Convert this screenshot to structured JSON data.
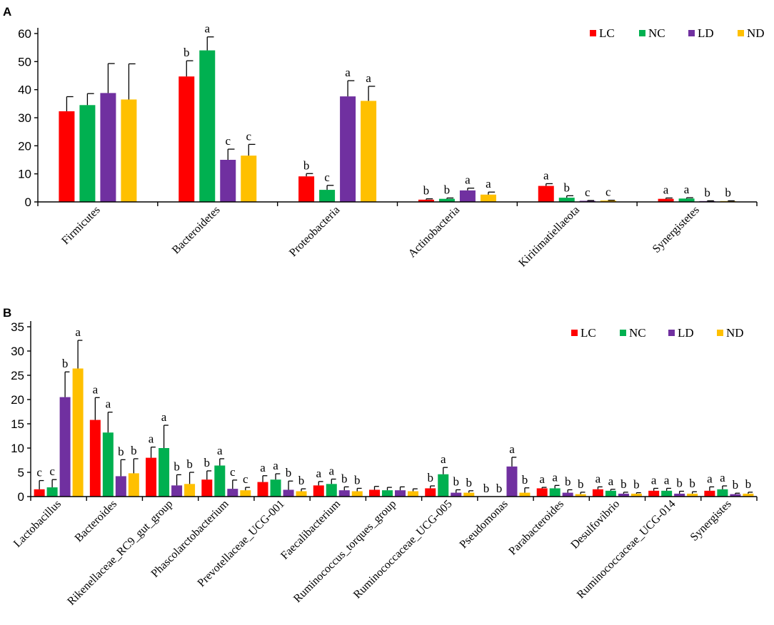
{
  "chart_data": [
    {
      "panel": "A",
      "type": "bar",
      "categories": [
        "Firmicutes",
        "Bacteroidetes",
        "Proteobacteria",
        "Actinobacteria",
        "Kiritimatiellaeota",
        "Synergistetes"
      ],
      "ylim": [
        0,
        60
      ],
      "yticks": [
        0,
        10,
        20,
        30,
        40,
        50,
        60
      ],
      "legend_position": "top-right",
      "series": [
        {
          "name": "LC",
          "color": "#ff0000",
          "values": [
            32.3,
            44.7,
            9.1,
            0.8,
            5.7,
            1.1
          ],
          "errors": [
            5.2,
            5.6,
            1.0,
            0.3,
            0.8,
            0.3
          ],
          "labels": [
            "",
            "b",
            "b",
            "b",
            "a",
            "a"
          ]
        },
        {
          "name": "NC",
          "color": "#00b050",
          "values": [
            34.5,
            54.0,
            4.3,
            1.1,
            1.5,
            1.2
          ],
          "errors": [
            4.1,
            4.8,
            1.6,
            0.3,
            0.7,
            0.3
          ],
          "labels": [
            "",
            "a",
            "c",
            "b",
            "b",
            "a"
          ]
        },
        {
          "name": "LD",
          "color": "#7030a0",
          "values": [
            38.8,
            15.0,
            37.6,
            4.1,
            0.4,
            0.3
          ],
          "errors": [
            10.5,
            3.8,
            5.6,
            0.8,
            0.1,
            0.1
          ],
          "labels": [
            "",
            "c",
            "a",
            "a",
            "c",
            "b"
          ]
        },
        {
          "name": "ND",
          "color": "#ffc000",
          "values": [
            36.5,
            16.5,
            36.0,
            2.6,
            0.5,
            0.3
          ],
          "errors": [
            12.7,
            4.0,
            5.2,
            0.9,
            0.1,
            0.1
          ],
          "labels": [
            "",
            "c",
            "a",
            "a",
            "c",
            "b"
          ]
        }
      ]
    },
    {
      "panel": "B",
      "type": "bar",
      "categories": [
        "Lactobacillus",
        "Bacteroides",
        "Rikenellaceae_RC9_gut_group",
        "Phascolarctobacterium",
        "Prevotellaceae_UCG-001",
        "Faecalibacterium",
        "Ruminococcus_torques_group",
        "Ruminococcaceae_UCG-005",
        "Pseudomonas",
        "Parabacteroides",
        "Desulfovibrio",
        "Ruminococcaceae_UCG-014",
        "Synergistes"
      ],
      "ylim": [
        0,
        35
      ],
      "yticks": [
        0,
        5,
        10,
        15,
        20,
        25,
        30,
        35
      ],
      "legend_position": "top-right",
      "series": [
        {
          "name": "LC",
          "color": "#ff0000",
          "values": [
            1.5,
            15.8,
            8.0,
            3.5,
            3.0,
            2.3,
            1.4,
            1.7,
            0.0,
            1.7,
            1.5,
            1.2,
            1.2
          ],
          "errors": [
            1.8,
            4.6,
            2.2,
            1.8,
            1.3,
            0.8,
            0.7,
            0.5,
            0.0,
            0.2,
            0.5,
            0.5,
            0.8
          ],
          "labels": [
            "c",
            "a",
            "a",
            "b",
            "a",
            "a",
            "",
            "b",
            "b",
            "a",
            "a",
            "a",
            "a"
          ]
        },
        {
          "name": "NC",
          "color": "#00b050",
          "values": [
            1.9,
            13.2,
            10.0,
            6.4,
            3.5,
            2.6,
            1.3,
            4.6,
            0.0,
            1.7,
            1.2,
            1.2,
            1.5
          ],
          "errors": [
            1.6,
            4.2,
            4.7,
            1.4,
            1.2,
            1.0,
            0.6,
            1.4,
            0.0,
            0.6,
            0.3,
            0.5,
            0.7
          ],
          "labels": [
            "c",
            "a",
            "a",
            "a",
            "a",
            "a",
            "",
            "a",
            "b",
            "a",
            "a",
            "a",
            "a"
          ]
        },
        {
          "name": "LD",
          "color": "#7030a0",
          "values": [
            20.5,
            4.2,
            2.3,
            1.6,
            1.4,
            1.3,
            1.3,
            0.8,
            6.2,
            0.8,
            0.6,
            0.6,
            0.5
          ],
          "errors": [
            5.2,
            3.4,
            2.2,
            1.8,
            1.8,
            0.7,
            0.7,
            0.6,
            1.9,
            0.6,
            0.3,
            0.5,
            0.2
          ],
          "labels": [
            "b",
            "b",
            "b",
            "c",
            "b",
            "b",
            "",
            "b",
            "a",
            "b",
            "b",
            "b",
            "b"
          ]
        },
        {
          "name": "ND",
          "color": "#ffc000",
          "values": [
            26.4,
            4.8,
            2.6,
            1.3,
            1.1,
            1.1,
            1.1,
            0.8,
            0.8,
            0.5,
            0.6,
            0.6,
            0.6
          ],
          "errors": [
            5.8,
            3.0,
            2.4,
            0.6,
            0.5,
            0.6,
            0.5,
            0.4,
            1.0,
            0.4,
            0.2,
            0.4,
            0.3
          ],
          "labels": [
            "a",
            "b",
            "b",
            "c",
            "b",
            "b",
            "",
            "b",
            "b",
            "b",
            "b",
            "b",
            "b"
          ]
        }
      ]
    }
  ]
}
